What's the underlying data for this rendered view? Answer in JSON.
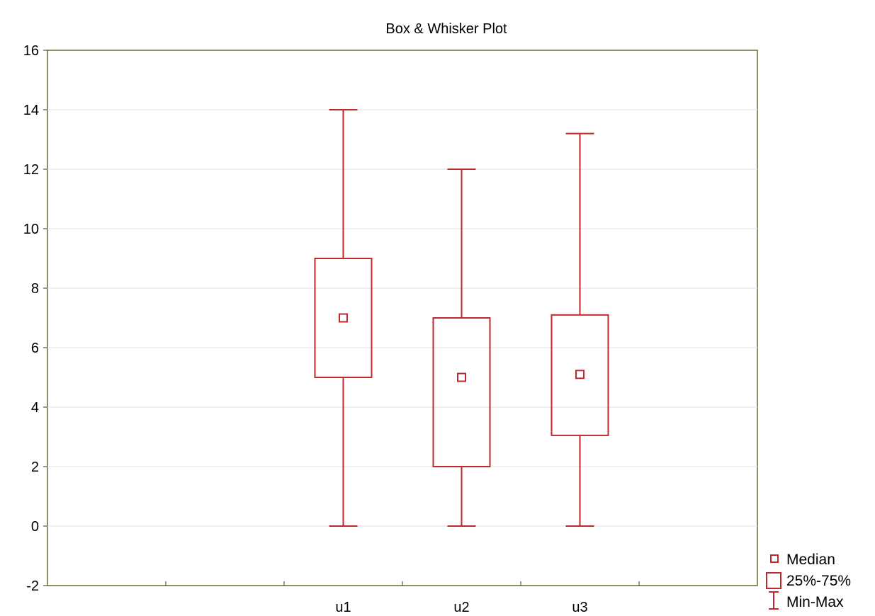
{
  "chart_data": {
    "type": "box",
    "title": "Box & Whisker Plot",
    "xlabel": "",
    "ylabel": "",
    "categories": [
      "",
      "",
      "u1",
      "u2",
      "u3",
      ""
    ],
    "ylim": [
      -2,
      16
    ],
    "yticks": [
      -2,
      0,
      2,
      4,
      6,
      8,
      10,
      12,
      14,
      16
    ],
    "grid": "horizontal",
    "color": "#c0282d",
    "boxes": [
      {
        "category": "u1",
        "min": 0,
        "q1": 5,
        "median": 7,
        "q3": 9,
        "max": 14
      },
      {
        "category": "u2",
        "min": 0,
        "q1": 2,
        "median": 5,
        "q3": 7,
        "max": 12
      },
      {
        "category": "u3",
        "min": 0,
        "q1": 3.05,
        "median": 5.1,
        "q3": 7.1,
        "max": 13.2
      }
    ],
    "legend": {
      "placement": "bottom-right",
      "entries": [
        {
          "symbol": "median-square",
          "label": "Median"
        },
        {
          "symbol": "box",
          "label": "25%-75%"
        },
        {
          "symbol": "whisker",
          "label": "Min-Max"
        }
      ]
    }
  }
}
